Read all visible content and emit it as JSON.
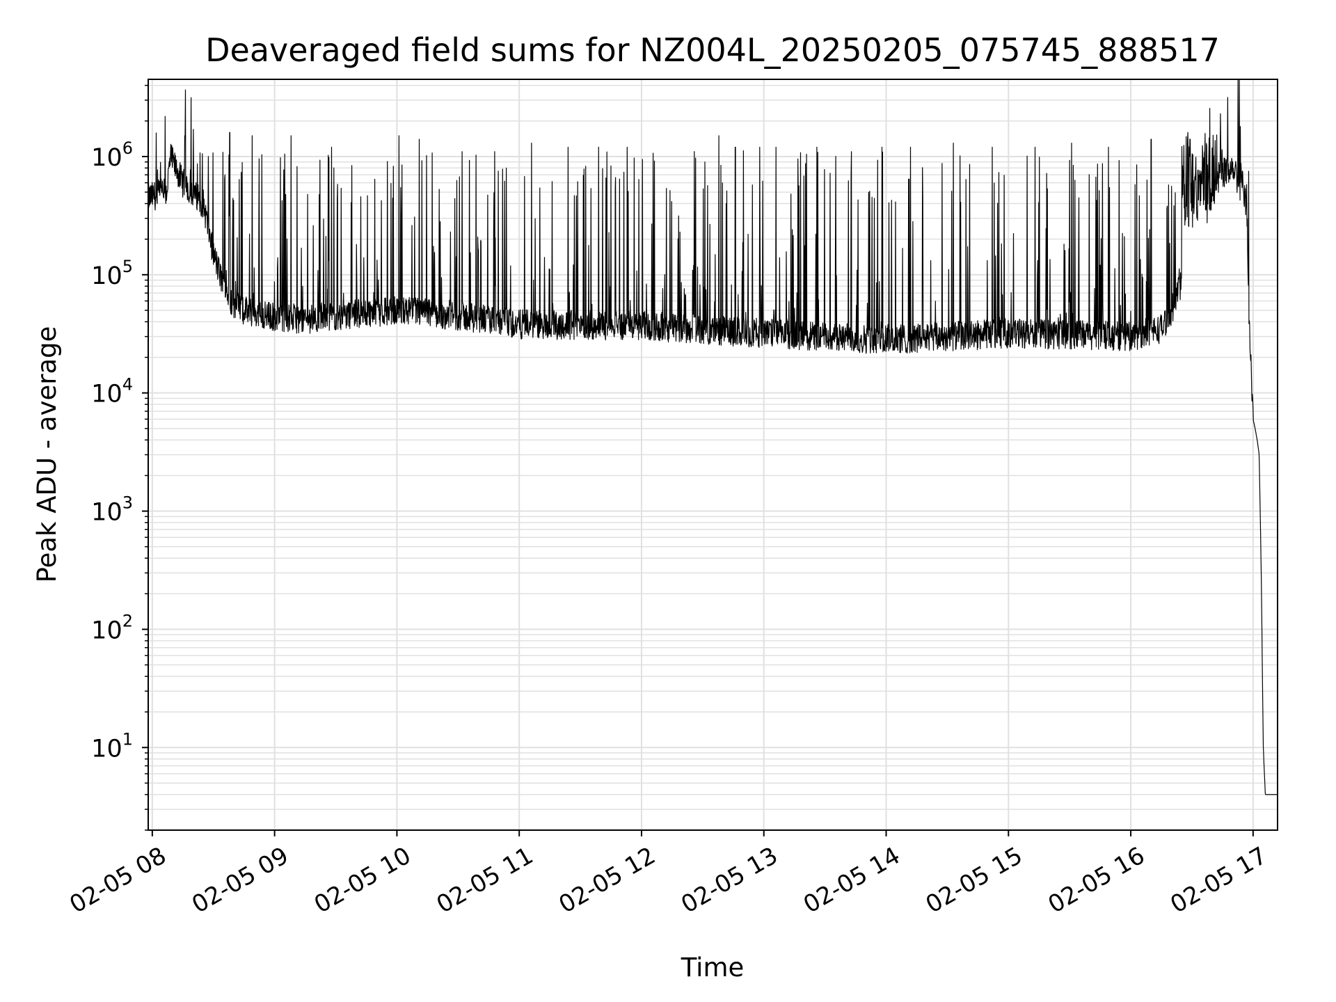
{
  "chart_data": {
    "type": "line",
    "title": "Deaveraged field sums for NZ004L_20250205_075745_888517",
    "xlabel": "Time",
    "ylabel": "Peak ADU - average",
    "yscale": "log",
    "ylim": [
      2,
      4500000
    ],
    "xlim": [
      "2025-02-05 07:58",
      "2025-02-05 17:12"
    ],
    "grid": true,
    "x_tick_labels": [
      "02-05 08",
      "02-05 09",
      "02-05 10",
      "02-05 11",
      "02-05 12",
      "02-05 13",
      "02-05 14",
      "02-05 15",
      "02-05 16",
      "02-05 17"
    ],
    "x_ticks": [
      "2025-02-05 08:00",
      "2025-02-05 09:00",
      "2025-02-05 10:00",
      "2025-02-05 11:00",
      "2025-02-05 12:00",
      "2025-02-05 13:00",
      "2025-02-05 14:00",
      "2025-02-05 15:00",
      "2025-02-05 16:00",
      "2025-02-05 17:00"
    ],
    "y_ticks": [
      {
        "value": 10,
        "base": "10",
        "exp": "1"
      },
      {
        "value": 100,
        "base": "10",
        "exp": "2"
      },
      {
        "value": 1000,
        "base": "10",
        "exp": "3"
      },
      {
        "value": 10000,
        "base": "10",
        "exp": "4"
      },
      {
        "value": 100000,
        "base": "10",
        "exp": "5"
      },
      {
        "value": 1000000,
        "base": "10",
        "exp": "6"
      }
    ],
    "line_color": "#000000",
    "grid_color": "#e0e0e0",
    "series": [
      {
        "baseline": {
          "x": [
            "2025-02-05 07:58",
            "2025-02-05 08:07",
            "2025-02-05 08:09",
            "2025-02-05 08:10",
            "2025-02-05 08:15",
            "2025-02-05 08:25",
            "2025-02-05 08:30",
            "2025-02-05 08:35",
            "2025-02-05 08:40",
            "2025-02-05 08:45",
            "2025-02-05 08:55",
            "2025-02-05 09:15",
            "2025-02-05 09:30",
            "2025-02-05 10:00",
            "2025-02-05 10:30",
            "2025-02-05 11:00",
            "2025-02-05 12:00",
            "2025-02-05 13:00",
            "2025-02-05 14:00",
            "2025-02-05 15:00",
            "2025-02-05 16:00",
            "2025-02-05 16:15",
            "2025-02-05 16:20",
            "2025-02-05 16:30",
            "2025-02-05 16:40",
            "2025-02-05 16:45",
            "2025-02-05 16:50",
            "2025-02-05 16:54",
            "2025-02-05 16:57",
            "2025-02-05 16:58",
            "2025-02-05 17:00",
            "2025-02-05 17:01",
            "2025-02-05 17:02",
            "2025-02-05 17:03",
            "2025-02-05 17:04",
            "2025-02-05 17:05",
            "2025-02-05 17:06",
            "2025-02-05 17:12"
          ],
          "y": [
            450000,
            500000,
            1000000,
            900000,
            600000,
            400000,
            150000,
            80000,
            55000,
            50000,
            45000,
            42000,
            45000,
            50000,
            45000,
            38000,
            37000,
            32000,
            28000,
            32000,
            30000,
            35000,
            50000,
            150000,
            450000,
            700000,
            850000,
            700000,
            350000,
            40000,
            6000,
            5000,
            4000,
            3000,
            300,
            10,
            4,
            4
          ]
        },
        "spikes": {
          "x": [
            "2025-02-05 08:16",
            "2025-02-05 08:38",
            "2025-02-05 08:49",
            "2025-02-05 09:08",
            "2025-02-05 09:28",
            "2025-02-05 10:01",
            "2025-02-05 10:11",
            "2025-02-05 10:32",
            "2025-02-05 10:48",
            "2025-02-05 11:06",
            "2025-02-05 11:24",
            "2025-02-05 11:39",
            "2025-02-05 11:53",
            "2025-02-05 12:38",
            "2025-02-05 12:46",
            "2025-02-05 12:58",
            "2025-02-05 13:06",
            "2025-02-05 13:26",
            "2025-02-05 13:43",
            "2025-02-05 13:58",
            "2025-02-05 14:12",
            "2025-02-05 14:33",
            "2025-02-05 14:52",
            "2025-02-05 15:13",
            "2025-02-05 15:31",
            "2025-02-05 15:49",
            "2025-02-05 16:10",
            "2025-02-05 16:28",
            "2025-02-05 16:44"
          ],
          "y": [
            1500000,
            1600000,
            1500000,
            1500000,
            1200000,
            1500000,
            1400000,
            1100000,
            1100000,
            1300000,
            1200000,
            1200000,
            1200000,
            1500000,
            1200000,
            1200000,
            1200000,
            1200000,
            1100000,
            1200000,
            1200000,
            1300000,
            1200000,
            1200000,
            1300000,
            1200000,
            1400000,
            1600000,
            2300000
          ]
        }
      }
    ]
  }
}
